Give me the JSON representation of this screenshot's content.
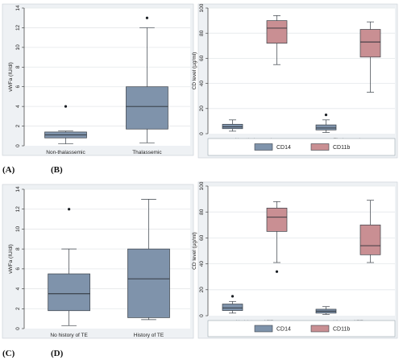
{
  "colors": {
    "cd14_fill": "#7f93ab",
    "cd11b_fill": "#c98f93",
    "box_stroke": "#3a4048",
    "grid": "#e4e7ea",
    "outer_bg": "#eef1f4"
  },
  "panel_labels": [
    "(A)",
    "(B)",
    "(C)",
    "(D)"
  ],
  "chart_data": [
    {
      "id": "A",
      "type": "box",
      "ylabel": "vWFa (IU/dl)",
      "ylim": [
        0,
        14
      ],
      "yticks": [
        0,
        2,
        4,
        6,
        8,
        10,
        12,
        14
      ],
      "categories": [
        "Non-thalassemic",
        "Thalassemic"
      ],
      "series": [
        {
          "color_key": "cd14_fill",
          "boxes": [
            {
              "min": 0.2,
              "q1": 0.8,
              "median": 1.1,
              "q3": 1.4,
              "max": 1.5,
              "outliers": [
                4.0
              ]
            },
            {
              "min": 0.3,
              "q1": 1.7,
              "median": 4.0,
              "q3": 6.0,
              "max": 12.0,
              "outliers": [
                13.0
              ]
            }
          ]
        }
      ],
      "legend": []
    },
    {
      "id": "B",
      "type": "box",
      "ylabel": "CD level (µg/ml)",
      "ylim": [
        0,
        100
      ],
      "yticks": [
        0,
        20,
        40,
        60,
        80,
        100
      ],
      "categories": [
        "Non-thalassemic",
        "Thalassemic"
      ],
      "series": [
        {
          "name": "CD14",
          "color_key": "cd14_fill",
          "boxes": [
            {
              "min": 2,
              "q1": 4,
              "median": 5.5,
              "q3": 7.5,
              "max": 11,
              "outliers": []
            },
            {
              "min": 1,
              "q1": 3,
              "median": 4.5,
              "q3": 7,
              "max": 11,
              "outliers": [
                15
              ]
            }
          ]
        },
        {
          "name": "CD11b",
          "color_key": "cd11b_fill",
          "boxes": [
            {
              "min": 55,
              "q1": 72,
              "median": 84,
              "q3": 90,
              "max": 94,
              "outliers": []
            },
            {
              "min": 33,
              "q1": 61,
              "median": 73,
              "q3": 83,
              "max": 89,
              "outliers": []
            }
          ]
        }
      ],
      "legend": [
        "CD14",
        "CD11b"
      ]
    },
    {
      "id": "C",
      "type": "box",
      "ylabel": "vWFa (IU/dl)",
      "ylim": [
        0,
        14
      ],
      "yticks": [
        0,
        2,
        4,
        6,
        8,
        10,
        12,
        14
      ],
      "categories": [
        "No history of TE",
        "History of TE"
      ],
      "series": [
        {
          "color_key": "cd14_fill",
          "boxes": [
            {
              "min": 0.3,
              "q1": 1.8,
              "median": 3.5,
              "q3": 5.5,
              "max": 8.0,
              "outliers": [
                12.0
              ]
            },
            {
              "min": 0.9,
              "q1": 1.1,
              "median": 5.0,
              "q3": 8.0,
              "max": 13.0,
              "outliers": []
            }
          ]
        }
      ],
      "legend": []
    },
    {
      "id": "D",
      "type": "box",
      "ylabel": "CD level (µg/ml)",
      "ylim": [
        0,
        100
      ],
      "yticks": [
        0,
        20,
        40,
        60,
        80,
        100
      ],
      "categories": [
        "No history of TE",
        "History of TE"
      ],
      "series": [
        {
          "name": "CD14",
          "color_key": "cd14_fill",
          "boxes": [
            {
              "min": 2,
              "q1": 4,
              "median": 6,
              "q3": 9,
              "max": 11,
              "outliers": [
                15
              ]
            },
            {
              "min": 1,
              "q1": 2,
              "median": 3.5,
              "q3": 5,
              "max": 7,
              "outliers": []
            }
          ]
        },
        {
          "name": "CD11b",
          "color_key": "cd11b_fill",
          "boxes": [
            {
              "min": 41,
              "q1": 65,
              "median": 76,
              "q3": 83,
              "max": 88,
              "outliers": [
                34
              ]
            },
            {
              "min": 41,
              "q1": 47,
              "median": 54,
              "q3": 70,
              "max": 89,
              "outliers": []
            }
          ]
        }
      ],
      "legend": [
        "CD14",
        "CD11b"
      ]
    }
  ]
}
